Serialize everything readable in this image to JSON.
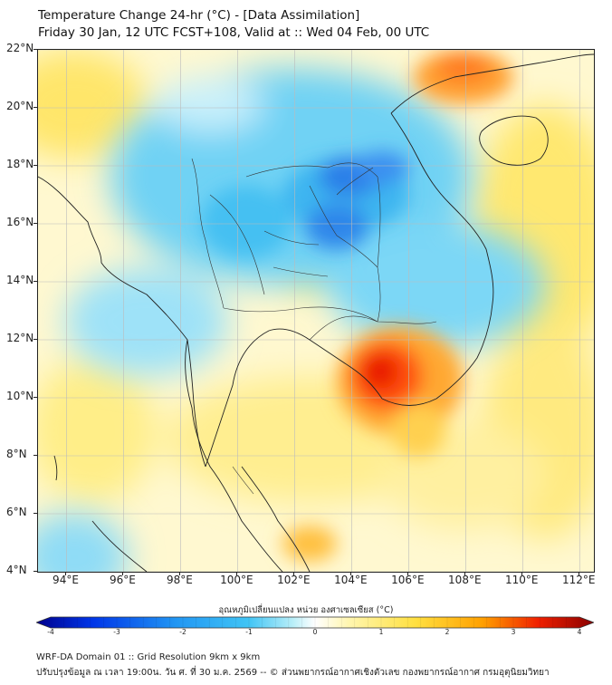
{
  "title": {
    "line1": "Temperature Change 24-hr (°C) - [Data Assimilation]",
    "line2": "Friday 30 Jan, 12 UTC FCST+108, Valid at :: Wed 04 Feb, 00 UTC"
  },
  "map": {
    "lat_range": [
      4,
      22
    ],
    "lon_range": [
      93,
      112.5
    ],
    "lat_labels": [
      {
        "value": 22,
        "text": "22°N"
      },
      {
        "value": 20,
        "text": "20°N"
      },
      {
        "value": 18,
        "text": "18°N"
      },
      {
        "value": 16,
        "text": "16°N"
      },
      {
        "value": 14,
        "text": "14°N"
      },
      {
        "value": 12,
        "text": "12°N"
      },
      {
        "value": 10,
        "text": "10°N"
      },
      {
        "value": 8,
        "text": "8°N"
      },
      {
        "value": 6,
        "text": "6°N"
      },
      {
        "value": 4,
        "text": "4°N"
      }
    ],
    "lon_labels": [
      {
        "value": 94,
        "text": "94°E"
      },
      {
        "value": 96,
        "text": "96°E"
      },
      {
        "value": 98,
        "text": "98°E"
      },
      {
        "value": 100,
        "text": "100°E"
      },
      {
        "value": 102,
        "text": "102°E"
      },
      {
        "value": 104,
        "text": "104°E"
      },
      {
        "value": 106,
        "text": "106°E"
      },
      {
        "value": 108,
        "text": "108°E"
      },
      {
        "value": 110,
        "text": "110°E"
      },
      {
        "value": 112,
        "text": "112°E"
      }
    ]
  },
  "colorbar": {
    "caption": "อุณหภูมิเปลี่ยนแปลง หน่วย องศาเซลเซียส (°C)",
    "min": -4,
    "max": 4,
    "ticks": [
      {
        "value": -4,
        "text": "-4"
      },
      {
        "value": -3,
        "text": "-3"
      },
      {
        "value": -2,
        "text": "-2"
      },
      {
        "value": -1,
        "text": "-1"
      },
      {
        "value": 0,
        "text": "0"
      },
      {
        "value": 1,
        "text": "1"
      },
      {
        "value": 2,
        "text": "2"
      },
      {
        "value": 3,
        "text": "3"
      },
      {
        "value": 4,
        "text": "4"
      }
    ],
    "colors": [
      "#00008c",
      "#0035e8",
      "#2196f3",
      "#40c4f5",
      "#b8eef8",
      "#ffffff",
      "#fff6b0",
      "#ffe040",
      "#ffa000",
      "#f02000",
      "#8a0000"
    ]
  },
  "footer": {
    "line1": "WRF-DA Domain 01 :: Grid Resolution 9km x 9km",
    "line2": "ปรับปรุงข้อมูล ณ เวลา 19:00น. วัน ศ. ที่ 30 ม.ค. 2569 -- © ส่วนพยากรณ์อากาศเชิงตัวเลข กองพยากรณ์อากาศ กรมอุตุนิยมวิทยา"
  }
}
